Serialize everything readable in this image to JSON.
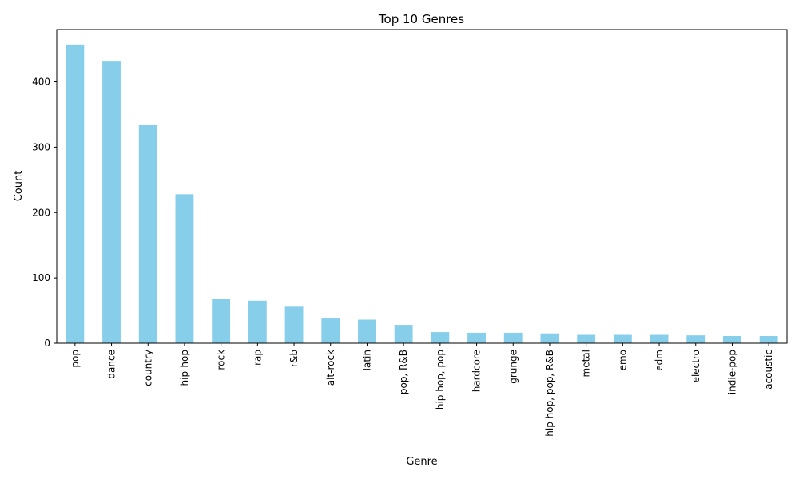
{
  "chart_data": {
    "type": "bar",
    "title": "Top 10 Genres",
    "xlabel": "Genre",
    "ylabel": "Count",
    "categories": [
      "pop",
      "dance",
      "country",
      "hip-hop",
      "rock",
      "rap",
      "r&b",
      "alt-rock",
      "latin",
      "pop, R&B",
      "hip hop, pop",
      "hardcore",
      "grunge",
      "hip hop, pop, R&B",
      "metal",
      "emo",
      "edm",
      "electro",
      "indie-pop",
      "acoustic"
    ],
    "values": [
      457,
      431,
      334,
      228,
      68,
      65,
      57,
      39,
      36,
      28,
      17,
      16,
      16,
      15,
      14,
      14,
      14,
      12,
      11,
      11
    ],
    "ylim": [
      0,
      480
    ],
    "yticks": [
      0,
      100,
      200,
      300,
      400
    ],
    "bar_color": "#87ceeb",
    "grid": false,
    "legend": "none"
  }
}
